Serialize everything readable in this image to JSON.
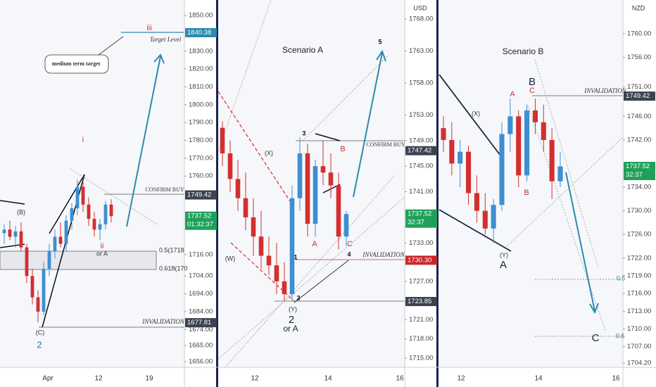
{
  "chart_data": [
    {
      "type": "candlestick",
      "up_color": "#3d8fd1",
      "down_color": "#d32f2f",
      "ylim": [
        1652.8,
        1858.7
      ],
      "yticks": [
        {
          "value": 1850,
          "label": "1850.00"
        },
        {
          "value": 1830,
          "label": "1830.00"
        },
        {
          "value": 1820,
          "label": "1820.00"
        },
        {
          "value": 1810,
          "label": "1810.00"
        },
        {
          "value": 1800,
          "label": "1800.00"
        },
        {
          "value": 1790,
          "label": "1790.00"
        },
        {
          "value": 1780,
          "label": "1780.00"
        },
        {
          "value": 1770,
          "label": "1770.00"
        },
        {
          "value": 1760,
          "label": "1760.00"
        },
        {
          "value": 1716,
          "label": "1716.00"
        },
        {
          "value": 1704,
          "label": "1704.00"
        },
        {
          "value": 1694,
          "label": "1694.00"
        },
        {
          "value": 1684,
          "label": "1684.00"
        },
        {
          "value": 1674,
          "label": "1674.00"
        },
        {
          "value": 1665,
          "label": "1665.00"
        },
        {
          "value": 1656,
          "label": "1656.00"
        }
      ],
      "x_labels": [
        "Apr",
        "12",
        "19"
      ],
      "candles": [
        [
          1728,
          1733,
          1722,
          1730
        ],
        [
          1730,
          1735,
          1724,
          1726
        ],
        [
          1726,
          1732,
          1720,
          1729
        ],
        [
          1729,
          1734,
          1718,
          1720
        ],
        [
          1720,
          1722,
          1700,
          1704
        ],
        [
          1704,
          1708,
          1688,
          1692
        ],
        [
          1692,
          1696,
          1678,
          1684
        ],
        [
          1684,
          1712,
          1682,
          1708
        ],
        [
          1708,
          1722,
          1704,
          1718
        ],
        [
          1718,
          1730,
          1714,
          1726
        ],
        [
          1726,
          1734,
          1720,
          1722
        ],
        [
          1722,
          1738,
          1718,
          1735
        ],
        [
          1735,
          1745,
          1730,
          1742
        ],
        [
          1742,
          1758,
          1738,
          1754
        ],
        [
          1754,
          1757,
          1740,
          1744
        ],
        [
          1744,
          1748,
          1732,
          1736
        ],
        [
          1736,
          1740,
          1726,
          1730
        ],
        [
          1730,
          1736,
          1724,
          1733
        ],
        [
          1733,
          1746,
          1730,
          1744
        ],
        [
          1744,
          1747,
          1734,
          1737.52
        ]
      ],
      "price_labels": [
        {
          "value": 1840.38,
          "color": "#2b8ab0"
        },
        {
          "value": 1749.42,
          "color": "#3c4250"
        },
        {
          "value": 1737.52,
          "color": "#1fa05a"
        },
        {
          "value": 1677.81,
          "color": "#3c4250"
        }
      ],
      "countdown": "01:32:37",
      "annotations": [
        "iii",
        "Target Level",
        "medium term target",
        "i",
        "CONFIRM BUY",
        "(B)",
        "ii",
        "or A",
        "0.5(1718",
        "0.618(170",
        "INVALIDATION",
        "(C)",
        "2"
      ]
    },
    {
      "type": "candlestick",
      "up_color": "#3d8fd1",
      "down_color": "#d32f2f",
      "currency": "USD",
      "ylim": [
        1713.57,
        1770.97
      ],
      "yticks": [
        {
          "value": 1768,
          "label": "1768.00"
        },
        {
          "value": 1763,
          "label": "1763.00"
        },
        {
          "value": 1758,
          "label": "1758.00"
        },
        {
          "value": 1753,
          "label": "1753.00"
        },
        {
          "value": 1749,
          "label": "1749.00"
        },
        {
          "value": 1745,
          "label": "1745.00"
        },
        {
          "value": 1741,
          "label": "1741.00"
        },
        {
          "value": 1733,
          "label": "1733.00"
        },
        {
          "value": 1727,
          "label": "1727.00"
        },
        {
          "value": 1721,
          "label": "1721.00"
        },
        {
          "value": 1718,
          "label": "1718.00"
        },
        {
          "value": 1715,
          "label": "1715.00"
        }
      ],
      "x_labels": [
        "12",
        "14",
        "16"
      ],
      "candles": [
        [
          1751,
          1752,
          1745,
          1747
        ],
        [
          1747,
          1749,
          1741,
          1743
        ],
        [
          1743,
          1746,
          1738,
          1740
        ],
        [
          1740,
          1744,
          1735,
          1737
        ],
        [
          1737,
          1740,
          1731,
          1734
        ],
        [
          1734,
          1738,
          1729,
          1731
        ],
        [
          1731,
          1734,
          1728,
          1729.5
        ],
        [
          1729.5,
          1733,
          1725,
          1727
        ],
        [
          1727,
          1730,
          1723.9,
          1725
        ],
        [
          1725,
          1742,
          1724,
          1740
        ],
        [
          1740,
          1749.5,
          1738,
          1747
        ],
        [
          1747,
          1748.5,
          1734,
          1736
        ],
        [
          1736,
          1746,
          1734,
          1745
        ],
        [
          1745,
          1749,
          1742,
          1744
        ],
        [
          1744,
          1747,
          1740,
          1742
        ],
        [
          1742,
          1744,
          1732,
          1734
        ],
        [
          1734,
          1738,
          1732.5,
          1737.52
        ]
      ],
      "price_labels": [
        {
          "value": 1747.42,
          "color": "#3c4250"
        },
        {
          "value": 1737.52,
          "color": "#1fa05a"
        },
        {
          "value": 1730.3,
          "label": "1730.30",
          "color": "#c62828"
        },
        {
          "value": 1723.85,
          "color": "#3c4250"
        }
      ],
      "countdown": "32:37",
      "annotations": [
        "Scenario A",
        "5",
        "(X)",
        "3",
        "B",
        "CONFIRM BUY",
        "(W)",
        "1",
        "A",
        "C",
        "4",
        "INVALIDATION",
        "2",
        "(Y)",
        "2",
        "or A"
      ]
    },
    {
      "type": "candlestick",
      "up_color": "#3d8fd1",
      "down_color": "#d32f2f",
      "currency": "NZD",
      "ylim": [
        1703.5,
        1765.7
      ],
      "yticks": [
        {
          "value": 1760,
          "label": "1760.00"
        },
        {
          "value": 1756,
          "label": "1756.00"
        },
        {
          "value": 1751,
          "label": "1751.00"
        },
        {
          "value": 1746,
          "label": "1746.00"
        },
        {
          "value": 1742,
          "label": "1742.00"
        },
        {
          "value": 1734,
          "label": "1734.00"
        },
        {
          "value": 1730,
          "label": "1730.00"
        },
        {
          "value": 1726,
          "label": "1726.00"
        },
        {
          "value": 1722,
          "label": "1722.00"
        },
        {
          "value": 1719,
          "label": "1719.00"
        },
        {
          "value": 1716,
          "label": "1716.00"
        },
        {
          "value": 1713,
          "label": "1713.00"
        },
        {
          "value": 1710,
          "label": "1710.00"
        },
        {
          "value": 1707,
          "label": "1707.00"
        },
        {
          "value": 1704.2,
          "label": "1704.20"
        }
      ],
      "x_labels": [
        "12",
        "14",
        "16"
      ],
      "candles": [
        [
          1744,
          1746,
          1740,
          1742
        ],
        [
          1742,
          1745,
          1736,
          1738
        ],
        [
          1738,
          1742,
          1734,
          1740
        ],
        [
          1740,
          1741,
          1731,
          1733
        ],
        [
          1733,
          1736,
          1728,
          1730
        ],
        [
          1730,
          1733,
          1726,
          1727
        ],
        [
          1727,
          1732,
          1724.5,
          1731
        ],
        [
          1731,
          1745,
          1730,
          1743
        ],
        [
          1743,
          1749,
          1740,
          1746
        ],
        [
          1746,
          1747,
          1734,
          1736
        ],
        [
          1736,
          1748,
          1735,
          1747
        ],
        [
          1747,
          1749,
          1743,
          1745
        ],
        [
          1745,
          1748,
          1740,
          1742
        ],
        [
          1742,
          1744,
          1732,
          1735
        ],
        [
          1735,
          1740,
          1734,
          1737.52
        ]
      ],
      "price_labels": [
        {
          "value": 1749.42,
          "color": "#3c4250"
        },
        {
          "value": 1737.52,
          "color": "#1fa05a"
        }
      ],
      "countdown": "32:37",
      "annotations": [
        "Scenario B",
        "(X)",
        "A",
        "C",
        "B",
        "INVALIDATION",
        "B",
        "(Y)",
        "A",
        "0.5",
        "C",
        "0.6"
      ]
    }
  ]
}
